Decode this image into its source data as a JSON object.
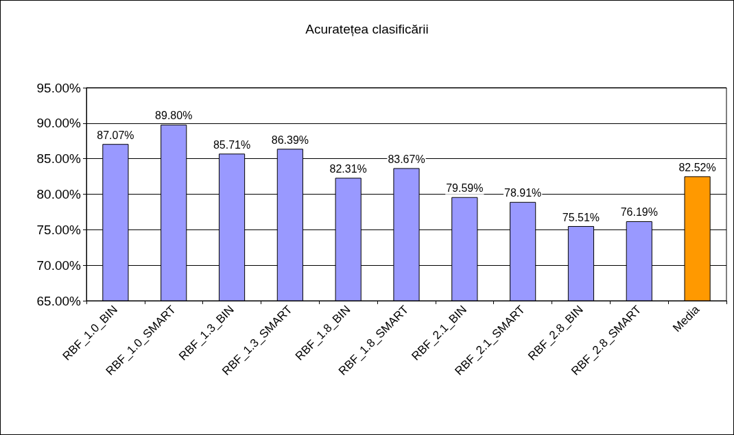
{
  "chart_data": {
    "type": "bar",
    "title": "Acuratețea clasificării",
    "categories": [
      "RBF_1.0_BIN",
      "RBF_1.0_SMART",
      "RBF_1.3_BIN",
      "RBF_1.3_SMART",
      "RBF_1.8_BIN",
      "RBF_1.8_SMART",
      "RBF_2.1_BIN",
      "RBF_2.1_SMART",
      "RBF_2.8_BIN",
      "RBF_2.8_SMART",
      "Media"
    ],
    "values": [
      87.07,
      89.8,
      85.71,
      86.39,
      82.31,
      83.67,
      79.59,
      78.91,
      75.51,
      76.19,
      82.52
    ],
    "colors": [
      "#9999ff",
      "#9999ff",
      "#9999ff",
      "#9999ff",
      "#9999ff",
      "#9999ff",
      "#9999ff",
      "#9999ff",
      "#9999ff",
      "#9999ff",
      "#ff9900"
    ],
    "value_labels": [
      "87.07%",
      "89.80%",
      "85.71%",
      "86.39%",
      "82.31%",
      "83.67%",
      "79.59%",
      "78.91%",
      "75.51%",
      "76.19%",
      "82.52%"
    ],
    "ylim": [
      65,
      95
    ],
    "yticks": [
      {
        "value": 65,
        "label": "65.00%"
      },
      {
        "value": 70,
        "label": "70.00%"
      },
      {
        "value": 75,
        "label": "75.00%"
      },
      {
        "value": 80,
        "label": "80.00%"
      },
      {
        "value": 85,
        "label": "85.00%"
      },
      {
        "value": 90,
        "label": "90.00%"
      },
      {
        "value": 95,
        "label": "95.00%"
      }
    ],
    "grid": "y"
  }
}
